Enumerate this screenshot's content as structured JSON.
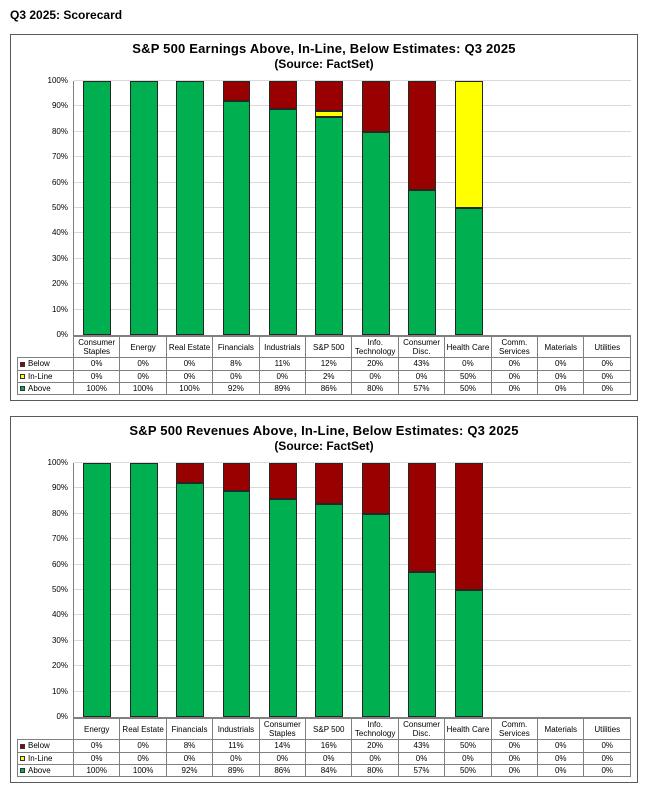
{
  "page_title": "Q3 2025: Scorecard",
  "colors": {
    "below": "#990000",
    "in_line": "#FFFF00",
    "above": "#00B050",
    "gridline": "#D9D9D9",
    "axis": "#808080"
  },
  "chart_data": [
    {
      "type": "bar",
      "stacked": true,
      "title": "S&P 500 Earnings Above, In-Line, Below Estimates: Q3 2025",
      "subtitle": "(Source: FactSet)",
      "categories": [
        "Consumer Staples",
        "Energy",
        "Real Estate",
        "Financials",
        "Industrials",
        "S&P 500",
        "Info. Technology",
        "Consumer Disc.",
        "Health Care",
        "Comm. Services",
        "Materials",
        "Utilities"
      ],
      "series": [
        {
          "name": "Below",
          "color": "#990000",
          "values": [
            0,
            0,
            0,
            8,
            11,
            12,
            20,
            43,
            0,
            0,
            0,
            0
          ]
        },
        {
          "name": "In-Line",
          "color": "#FFFF00",
          "values": [
            0,
            0,
            0,
            0,
            0,
            2,
            0,
            0,
            50,
            0,
            0,
            0
          ]
        },
        {
          "name": "Above",
          "color": "#00B050",
          "values": [
            100,
            100,
            100,
            92,
            89,
            86,
            80,
            57,
            50,
            0,
            0,
            0
          ]
        }
      ],
      "stack_order_bottom_to_top": [
        "Above",
        "In-Line",
        "Below"
      ],
      "ylabel": "",
      "ylim": [
        0,
        100
      ],
      "ytick_step": 10,
      "ytick_suffix": "%",
      "grid": true,
      "legend_position": "table-rows-left"
    },
    {
      "type": "bar",
      "stacked": true,
      "title": "S&P 500 Revenues Above, In-Line, Below Estimates: Q3 2025",
      "subtitle": "(Source: FactSet)",
      "categories": [
        "Energy",
        "Real Estate",
        "Financials",
        "Industrials",
        "Consumer Staples",
        "S&P 500",
        "Info. Technology",
        "Consumer Disc.",
        "Health Care",
        "Comm. Services",
        "Materials",
        "Utilities"
      ],
      "series": [
        {
          "name": "Below",
          "color": "#990000",
          "values": [
            0,
            0,
            8,
            11,
            14,
            16,
            20,
            43,
            50,
            0,
            0,
            0
          ]
        },
        {
          "name": "In-Line",
          "color": "#FFFF00",
          "values": [
            0,
            0,
            0,
            0,
            0,
            0,
            0,
            0,
            0,
            0,
            0,
            0
          ]
        },
        {
          "name": "Above",
          "color": "#00B050",
          "values": [
            100,
            100,
            92,
            89,
            86,
            84,
            80,
            57,
            50,
            0,
            0,
            0
          ]
        }
      ],
      "stack_order_bottom_to_top": [
        "Above",
        "In-Line",
        "Below"
      ],
      "ylabel": "",
      "ylim": [
        0,
        100
      ],
      "ytick_step": 10,
      "ytick_suffix": "%",
      "grid": true,
      "legend_position": "table-rows-left"
    }
  ]
}
